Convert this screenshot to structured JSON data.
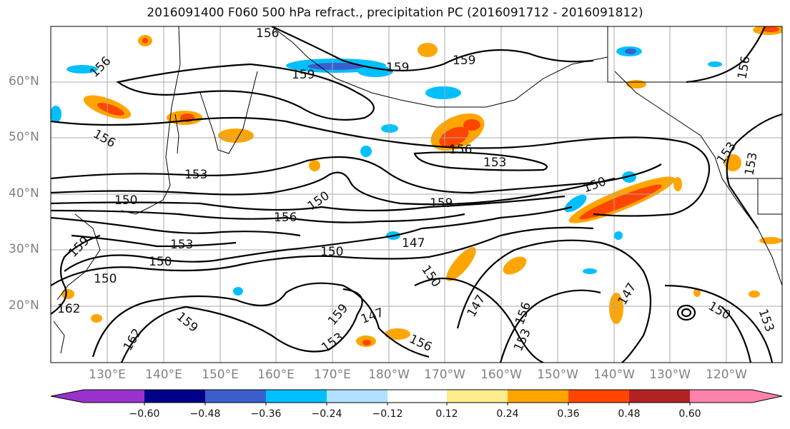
{
  "title": "2016091400 F060 500 hPa refract., precipitation PC (2016091712 - 2016091812)",
  "lat_labels": [
    "60°N",
    "50°N",
    "40°N",
    "30°N",
    "20°N"
  ],
  "lon_labels": [
    "130°E",
    "140°E",
    "150°E",
    "160°E",
    "170°E",
    "180°W",
    "170°W",
    "160°W",
    "150°W",
    "140°W",
    "130°W",
    "120°W"
  ],
  "contour_labels": [
    "156",
    "159",
    "159",
    "159",
    "156",
    "156",
    "156",
    "153",
    "153",
    "150",
    "156",
    "150",
    "159",
    "156",
    "153",
    "153",
    "153",
    "150",
    "147",
    "150",
    "150",
    "150",
    "159",
    "162",
    "162",
    "159",
    "147",
    "153",
    "156",
    "150",
    "147",
    "159",
    "153",
    "147",
    "150",
    "153",
    "156"
  ],
  "colorbar": {
    "ticks": [
      "−0.60",
      "−0.48",
      "−0.36",
      "−0.24",
      "−0.12",
      "0.12",
      "0.24",
      "0.36",
      "0.48",
      "0.60"
    ],
    "colors": [
      "#9932cc",
      "#00008b",
      "#3a5fcd",
      "#00bfff",
      "#b0e2ff",
      "#ffffff",
      "#ffec8b",
      "#ffa500",
      "#ff4500",
      "#b22222",
      "#ff82ab"
    ]
  }
}
